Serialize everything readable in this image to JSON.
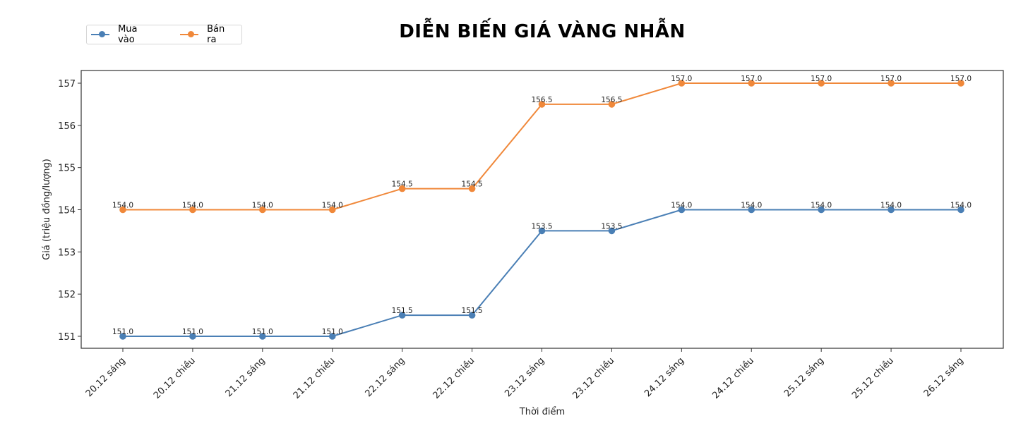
{
  "chart_data": {
    "type": "line",
    "title": "DIỄN BIẾN GIÁ VÀNG NHẪN",
    "xlabel": "Thời điểm",
    "ylabel": "Giá (triệu đồng/lượng)",
    "categories": [
      "20.12 sáng",
      "20.12 chiều",
      "21.12 sáng",
      "21.12 chiều",
      "22.12 sáng",
      "22.12 chiều",
      "23.12 sáng",
      "23.12 chiều",
      "24.12 sáng",
      "24.12 chiều",
      "25.12 sáng",
      "25.12 chiều",
      "26.12 sáng"
    ],
    "series": [
      {
        "name": "Mua vào",
        "color": "#4a7fb5",
        "values": [
          151.0,
          151.0,
          151.0,
          151.0,
          151.5,
          151.5,
          153.5,
          153.5,
          154.0,
          154.0,
          154.0,
          154.0,
          154.0
        ]
      },
      {
        "name": "Bán ra",
        "color": "#f0883a",
        "values": [
          154.0,
          154.0,
          154.0,
          154.0,
          154.5,
          154.5,
          156.5,
          156.5,
          157.0,
          157.0,
          157.0,
          157.0,
          157.0
        ]
      }
    ],
    "yticks": [
      151,
      152,
      153,
      154,
      155,
      156,
      157
    ],
    "ylim": [
      150.7,
      157.3
    ],
    "grid": false,
    "legend_position": "upper left (outside, above axes)",
    "data_labels": true
  }
}
